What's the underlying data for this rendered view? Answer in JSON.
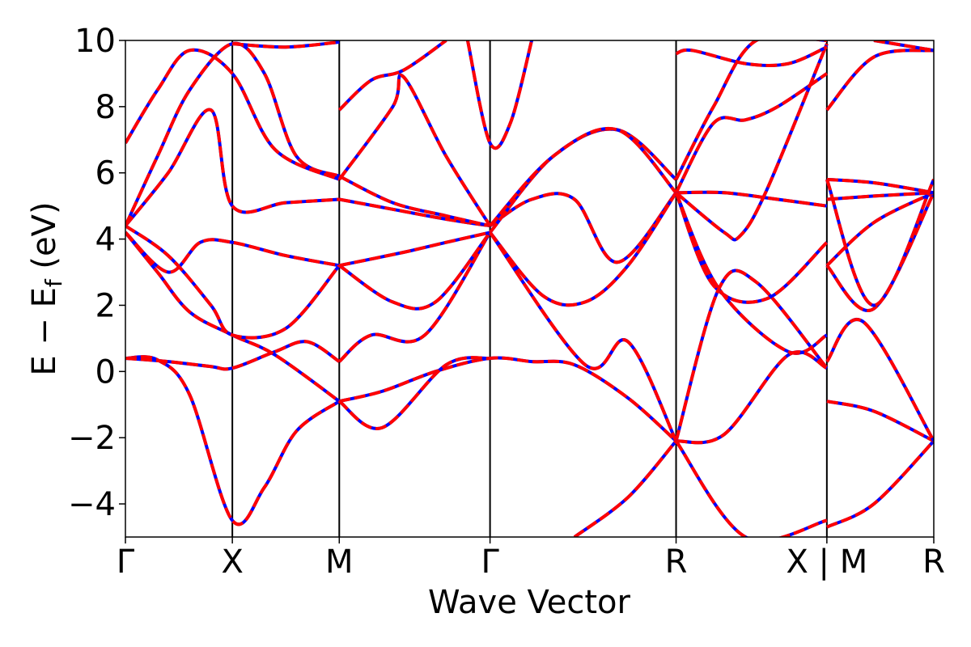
{
  "chart_data": {
    "type": "line",
    "title": "",
    "xlabel": "Wave Vector",
    "ylabel": "E − E",
    "ylabel_sub": "f",
    "ylabel_unit": " (eV)",
    "ylim": [
      -5,
      10
    ],
    "yticks": [
      -4,
      -2,
      0,
      2,
      4,
      6,
      8,
      10
    ],
    "ytick_labels": [
      "−4",
      "−2",
      "0",
      "2",
      "4",
      "6",
      "8",
      "10"
    ],
    "xlim": [
      0,
      7.5
    ],
    "kpoints": [
      {
        "x": 0.0,
        "label": "Γ"
      },
      {
        "x": 1.0,
        "label": "X"
      },
      {
        "x": 2.0,
        "label": "M"
      },
      {
        "x": 3.41,
        "label": "Γ"
      },
      {
        "x": 5.15,
        "label": "R"
      },
      {
        "x": 6.56,
        "label": "X | M"
      },
      {
        "x": 7.56,
        "label": "R"
      }
    ],
    "colors": {
      "series_a": "#0000ff",
      "series_b": "#ff0000",
      "kline": "#000000"
    },
    "bands": [
      {
        "x": [
          0,
          0.3,
          0.6,
          1.0,
          1.3,
          1.6,
          2.0
        ],
        "y": [
          0.4,
          0.35,
          -0.7,
          -4.5,
          -3.5,
          -1.8,
          -0.9
        ]
      },
      {
        "x": [
          2.0,
          2.4,
          2.9,
          3.41,
          3.8,
          4.2,
          4.7,
          5.15
        ],
        "y": [
          -0.9,
          -0.6,
          0.0,
          0.4,
          0.3,
          0.2,
          -0.8,
          -2.1
        ]
      },
      {
        "x": [
          0,
          0.4,
          0.8,
          1.0,
          1.4,
          1.7,
          2.0
        ],
        "y": [
          0.4,
          0.3,
          0.15,
          0.1,
          0.6,
          0.9,
          0.3
        ]
      },
      {
        "x": [
          2.0,
          2.3,
          2.8,
          3.41
        ],
        "y": [
          0.3,
          1.1,
          1.1,
          4.2
        ]
      },
      {
        "x": [
          0,
          0.3,
          0.6,
          1.0,
          1.4,
          2.0
        ],
        "y": [
          4.2,
          3.0,
          1.8,
          1.1,
          0.5,
          -0.9
        ]
      },
      {
        "x": [
          2.0,
          2.4,
          3.0,
          3.41
        ],
        "y": [
          -0.9,
          -1.7,
          0.2,
          0.4
        ]
      },
      {
        "x": [
          0,
          0.4,
          0.7,
          1.0,
          1.5,
          2.0
        ],
        "y": [
          4.2,
          3.0,
          3.9,
          3.9,
          3.5,
          3.2
        ]
      },
      {
        "x": [
          2.0,
          2.5,
          2.9,
          3.41
        ],
        "y": [
          3.2,
          2.1,
          2.1,
          4.2
        ]
      },
      {
        "x": [
          0,
          0.4,
          0.8,
          1.0,
          1.5,
          2.0
        ],
        "y": [
          4.4,
          3.5,
          2.0,
          1.1,
          1.3,
          3.2
        ]
      },
      {
        "x": [
          2.0,
          2.6,
          3.0,
          3.41
        ],
        "y": [
          3.2,
          3.6,
          3.9,
          4.2
        ]
      },
      {
        "x": [
          0,
          0.4,
          0.8,
          1.0,
          1.5,
          2.0
        ],
        "y": [
          4.4,
          6.0,
          7.9,
          5.0,
          5.1,
          5.2
        ]
      },
      {
        "x": [
          2.0,
          2.5,
          3.0,
          3.41
        ],
        "y": [
          5.2,
          4.9,
          4.6,
          4.4
        ]
      },
      {
        "x": [
          0,
          0.3,
          0.6,
          1.0,
          1.3,
          1.6,
          2.0
        ],
        "y": [
          4.4,
          6.5,
          8.5,
          9.9,
          9.0,
          6.5,
          5.9
        ]
      },
      {
        "x": [
          2.0,
          2.5,
          3.0,
          3.41
        ],
        "y": [
          5.9,
          5.1,
          4.7,
          4.4
        ]
      },
      {
        "x": [
          0,
          0.3,
          0.6,
          1.0,
          1.4,
          2.0
        ],
        "y": [
          6.9,
          8.5,
          9.7,
          9.0,
          6.7,
          5.8
        ]
      },
      {
        "x": [
          2.0,
          2.5,
          2.6,
          3.0,
          3.41
        ],
        "y": [
          5.8,
          8.0,
          8.9,
          6.5,
          4.4
        ]
      },
      {
        "x": [
          1.0,
          1.5,
          2.0
        ],
        "y": [
          9.9,
          9.8,
          9.95
        ]
      },
      {
        "x": [
          2.0,
          2.3,
          2.6,
          3.0
        ],
        "y": [
          7.9,
          8.8,
          9.1,
          10.0
        ]
      },
      {
        "x": [
          3.2,
          3.41,
          3.6,
          3.8
        ],
        "y": [
          10.0,
          6.9,
          7.5,
          10.0
        ]
      },
      {
        "x": [
          3.41,
          3.8,
          4.2,
          4.6,
          5.15
        ],
        "y": [
          4.4,
          5.2,
          5.2,
          3.3,
          5.4
        ]
      },
      {
        "x": [
          3.41,
          4.0,
          4.6,
          5.15
        ],
        "y": [
          4.2,
          6.5,
          7.3,
          5.8
        ]
      },
      {
        "x": [
          3.41,
          3.9,
          4.3,
          4.7,
          5.15
        ],
        "y": [
          4.2,
          2.3,
          2.1,
          3.2,
          5.4
        ]
      },
      {
        "x": [
          3.41,
          4.0,
          4.6,
          5.15
        ],
        "y": [
          4.4,
          6.5,
          7.3,
          5.4
        ]
      },
      {
        "x": [
          3.41,
          4.3,
          4.7,
          5.15
        ],
        "y": [
          4.2,
          0.2,
          0.9,
          -2.1
        ]
      },
      {
        "x": [
          4.2,
          4.7,
          5.15
        ],
        "y": [
          -5.0,
          -3.8,
          -2.1
        ]
      },
      {
        "x": [
          5.15,
          5.6,
          6.1,
          6.56
        ],
        "y": [
          5.4,
          5.4,
          5.2,
          5.0
        ]
      },
      {
        "x": [
          5.15,
          5.5,
          5.8,
          6.1,
          6.56
        ],
        "y": [
          5.4,
          7.5,
          7.6,
          8.0,
          9.0
        ]
      },
      {
        "x": [
          5.15,
          5.5,
          5.9,
          6.56
        ],
        "y": [
          5.8,
          8.0,
          10.0,
          10.0
        ]
      },
      {
        "x": [
          5.15,
          5.6,
          5.75,
          6.0,
          6.56
        ],
        "y": [
          5.4,
          4.2,
          4.1,
          5.5,
          9.9
        ]
      },
      {
        "x": [
          5.15,
          5.5,
          6.0,
          6.56
        ],
        "y": [
          5.4,
          2.6,
          2.2,
          3.9
        ]
      },
      {
        "x": [
          5.15,
          5.55,
          6.2,
          6.56
        ],
        "y": [
          5.4,
          2.5,
          0.6,
          1.1
        ]
      },
      {
        "x": [
          5.15,
          5.55,
          5.9,
          6.56
        ],
        "y": [
          -2.1,
          2.5,
          2.7,
          0.1
        ]
      },
      {
        "x": [
          5.15,
          5.6,
          6.2,
          6.56
        ],
        "y": [
          -2.1,
          -1.9,
          0.5,
          0.1
        ]
      },
      {
        "x": [
          5.15,
          5.8,
          6.56
        ],
        "y": [
          -2.1,
          -5.0,
          -4.5
        ]
      },
      {
        "x": [
          5.15,
          5.3,
          5.8,
          6.2,
          6.56
        ],
        "y": [
          9.6,
          9.7,
          9.3,
          9.3,
          9.8
        ]
      },
      {
        "x": [
          6.56,
          7.0,
          7.56
        ],
        "y": [
          -4.7,
          -4.0,
          -2.1
        ]
      },
      {
        "x": [
          6.56,
          7.0,
          7.56
        ],
        "y": [
          -0.9,
          -1.2,
          -2.1
        ]
      },
      {
        "x": [
          6.56,
          6.9,
          7.56
        ],
        "y": [
          0.3,
          1.5,
          -2.1
        ]
      },
      {
        "x": [
          6.56,
          7.0,
          7.56
        ],
        "y": [
          3.2,
          1.9,
          5.4
        ]
      },
      {
        "x": [
          6.56,
          7.0,
          7.56
        ],
        "y": [
          3.2,
          4.5,
          5.4
        ]
      },
      {
        "x": [
          6.56,
          7.0,
          7.56
        ],
        "y": [
          5.2,
          5.3,
          5.4
        ]
      },
      {
        "x": [
          6.56,
          7.0,
          7.56
        ],
        "y": [
          5.8,
          5.7,
          5.4
        ]
      },
      {
        "x": [
          6.56,
          7.0,
          7.56
        ],
        "y": [
          5.8,
          2.0,
          5.8
        ]
      },
      {
        "x": [
          6.56,
          7.0,
          7.56
        ],
        "y": [
          7.9,
          9.5,
          9.7
        ]
      },
      {
        "x": [
          7.0,
          7.56
        ],
        "y": [
          10.0,
          9.7
        ]
      }
    ]
  }
}
